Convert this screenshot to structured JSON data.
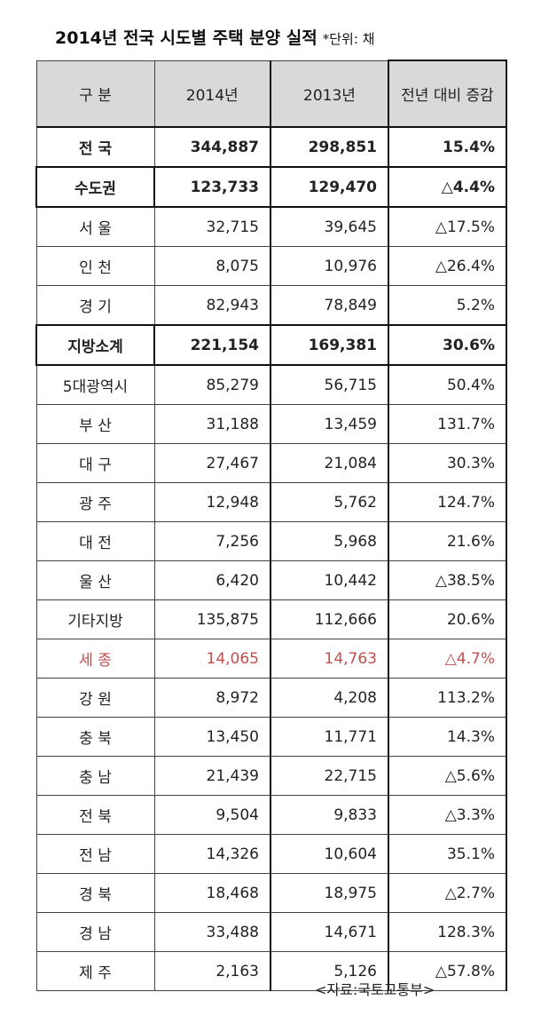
{
  "title": "2014년 전국 시도별 주택 분양 실적",
  "unit": "*단위: 채",
  "headers": [
    "구 분",
    "2014년",
    "2013년",
    "전년 대비 증감"
  ],
  "rows": [
    {
      "label": "전 국",
      "v2014": "344,887",
      "v2013": "298,851",
      "change": "15.4%",
      "style": "bold total"
    },
    {
      "label": "수도권",
      "v2014": "123,733",
      "v2013": "129,470",
      "change": "△4.4%",
      "style": "bold subtotal"
    },
    {
      "label": "서 울",
      "v2014": "32,715",
      "v2013": "39,645",
      "change": "△17.5%",
      "style": ""
    },
    {
      "label": "인 천",
      "v2014": "8,075",
      "v2013": "10,976",
      "change": "△26.4%",
      "style": ""
    },
    {
      "label": "경 기",
      "v2014": "82,943",
      "v2013": "78,849",
      "change": "5.2%",
      "style": ""
    },
    {
      "label": "지방소계",
      "v2014": "221,154",
      "v2013": "169,381",
      "change": "30.6%",
      "style": "bold subtotal"
    },
    {
      "label": "5대광역시",
      "v2014": "85,279",
      "v2013": "56,715",
      "change": "50.4%",
      "style": ""
    },
    {
      "label": "부 산",
      "v2014": "31,188",
      "v2013": "13,459",
      "change": "131.7%",
      "style": ""
    },
    {
      "label": "대 구",
      "v2014": "27,467",
      "v2013": "21,084",
      "change": "30.3%",
      "style": ""
    },
    {
      "label": "광 주",
      "v2014": "12,948",
      "v2013": "5,762",
      "change": "124.7%",
      "style": ""
    },
    {
      "label": "대 전",
      "v2014": "7,256",
      "v2013": "5,968",
      "change": "21.6%",
      "style": ""
    },
    {
      "label": "울 산",
      "v2014": "6,420",
      "v2013": "10,442",
      "change": "△38.5%",
      "style": ""
    },
    {
      "label": "기타지방",
      "v2014": "135,875",
      "v2013": "112,666",
      "change": "20.6%",
      "style": ""
    },
    {
      "label": "세 종",
      "v2014": "14,065",
      "v2013": "14,763",
      "change": "△4.7%",
      "style": "red"
    },
    {
      "label": "강 원",
      "v2014": "8,972",
      "v2013": "4,208",
      "change": "113.2%",
      "style": ""
    },
    {
      "label": "충 북",
      "v2014": "13,450",
      "v2013": "11,771",
      "change": "14.3%",
      "style": ""
    },
    {
      "label": "충 남",
      "v2014": "21,439",
      "v2013": "22,715",
      "change": "△5.6%",
      "style": ""
    },
    {
      "label": "전 북",
      "v2014": "9,504",
      "v2013": "9,833",
      "change": "△3.3%",
      "style": ""
    },
    {
      "label": "전 남",
      "v2014": "14,326",
      "v2013": "10,604",
      "change": "35.1%",
      "style": ""
    },
    {
      "label": "경 북",
      "v2014": "18,468",
      "v2013": "18,975",
      "change": "△2.7%",
      "style": ""
    },
    {
      "label": "경 남",
      "v2014": "33,488",
      "v2013": "14,671",
      "change": "128.3%",
      "style": ""
    },
    {
      "label": "제 주",
      "v2014": "2,163",
      "v2013": "5,126",
      "change": "△57.8%",
      "style": ""
    }
  ],
  "source": "<자료:국토교통부>",
  "colors": {
    "header_bg": "#d9d9d9",
    "highlight_red": "#c0504d"
  }
}
